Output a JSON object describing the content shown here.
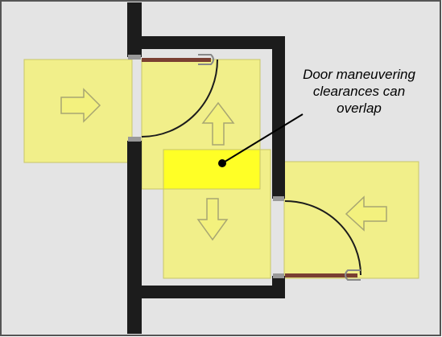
{
  "annotation": {
    "lines": [
      "Door maneuvering",
      "clearances can",
      "overlap"
    ]
  },
  "colors": {
    "background": "#e4e4e4",
    "frame": "#555555",
    "wall": "#1c1c1c",
    "clearance_fill": "#f1ef8a",
    "clearance_stroke": "#c8c66a",
    "overlap_fill": "#ffff26",
    "arrow_fill": "#f3f17e",
    "arrow_stroke": "#a8a672",
    "door_panel": "#7a3f32",
    "door_hardware": "#999999"
  },
  "arrows": [
    {
      "name": "arrow-right-icon",
      "direction": "right"
    },
    {
      "name": "arrow-up-icon",
      "direction": "up"
    },
    {
      "name": "arrow-down-icon",
      "direction": "down"
    },
    {
      "name": "arrow-left-icon",
      "direction": "left"
    }
  ]
}
